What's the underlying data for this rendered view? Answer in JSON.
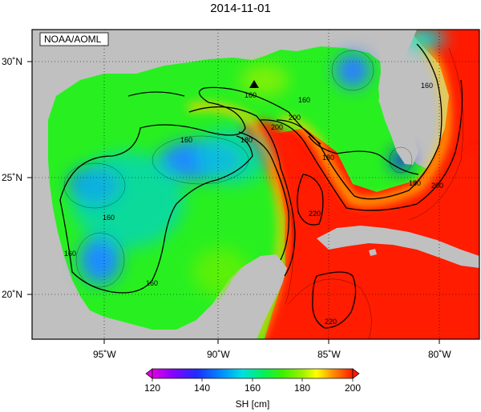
{
  "title": "2014-11-01",
  "credit": "NOAA/AOML",
  "variable_label": "SH [cm]",
  "longitude_ticks": [
    "95˚W",
    "90˚W",
    "85˚W",
    "80˚W"
  ],
  "latitude_ticks": [
    "30˚N",
    "25˚N",
    "20˚N"
  ],
  "colorbar_ticks": [
    "120",
    "140",
    "160",
    "180",
    "200"
  ],
  "contour_labels": [
    "160",
    "160",
    "160",
    "160",
    "160",
    "180",
    "180",
    "200",
    "200",
    "220",
    "180",
    "220",
    "160",
    "200",
    "160"
  ],
  "colors": {
    "land": "#c0c0c0",
    "colorbar": [
      "#e000e0",
      "#8a00ff",
      "#1f2bff",
      "#0090ff",
      "#00e0e0",
      "#00f060",
      "#3cf000",
      "#a0f000",
      "#ffff00",
      "#ff9000",
      "#ff1a00"
    ]
  },
  "marker": "triangle-marker"
}
